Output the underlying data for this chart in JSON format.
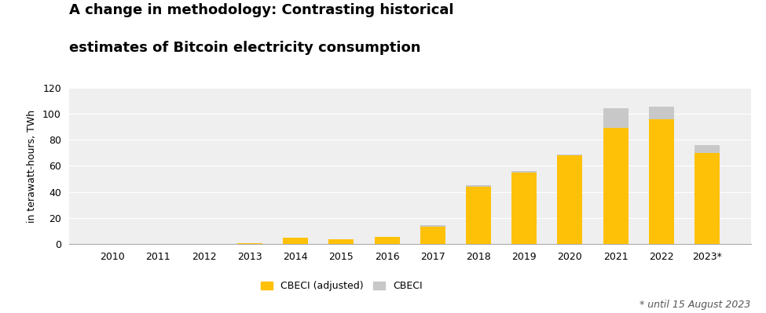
{
  "title_line1": "A change in methodology: Contrasting historical",
  "title_line2": "estimates of Bitcoin electricity consumption",
  "ylabel": "in terawatt-hours, TWh",
  "years": [
    "2010",
    "2011",
    "2012",
    "2013",
    "2014",
    "2015",
    "2016",
    "2017",
    "2018",
    "2019",
    "2020",
    "2021",
    "2022",
    "2023*"
  ],
  "cbeci_adjusted": [
    0,
    0,
    0,
    1.0,
    5.0,
    3.5,
    5.5,
    13.5,
    44.0,
    55.0,
    68.0,
    89.0,
    96.0,
    70.0
  ],
  "cbeci_total": [
    0,
    0,
    0,
    1.0,
    5.0,
    3.5,
    5.5,
    14.5,
    45.5,
    56.0,
    68.5,
    104.0,
    105.5,
    76.0
  ],
  "ylim": [
    0,
    120
  ],
  "yticks": [
    0,
    20,
    40,
    60,
    80,
    100,
    120
  ],
  "bar_color_adjusted": "#FFC107",
  "bar_color_cbeci": "#C8C8C8",
  "bg_color": "#EFEFEF",
  "fig_bg_color": "#FFFFFF",
  "legend_label_adjusted": "CBECI (adjusted)",
  "legend_label_cbeci": "CBECI",
  "footnote": "* until 15 August 2023",
  "title_fontsize": 13,
  "axis_label_fontsize": 9,
  "tick_fontsize": 9,
  "legend_fontsize": 9,
  "bar_width": 0.55
}
